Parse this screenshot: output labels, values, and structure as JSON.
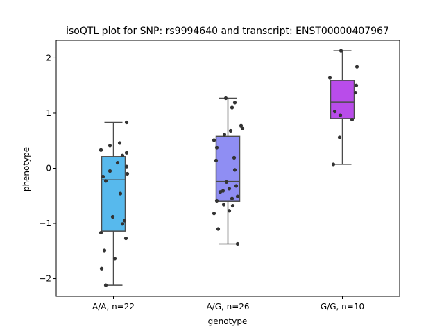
{
  "chart_data": {
    "type": "box",
    "title": "isoQTL plot for SNP: rs9994640 and transcript: ENST00000407967",
    "xlabel": "genotype",
    "ylabel": "phenotype",
    "ylim": [
      -2.32,
      2.32
    ],
    "yticks": [
      -2,
      -1,
      0,
      1,
      2
    ],
    "yticklabels": [
      "−2",
      "−1",
      "0",
      "1",
      "2"
    ],
    "grid": false,
    "categories": [
      "A/A, n=22",
      "A/G, n=26",
      "G/G, n=10"
    ],
    "colors": [
      "#57b9ed",
      "#8f8ef3",
      "#b94cea"
    ],
    "boxes": [
      {
        "category": "A/A, n=22",
        "whislo": -2.12,
        "q1": -1.14,
        "median": -0.21,
        "q3": 0.21,
        "whishi": 0.83
      },
      {
        "category": "A/G, n=26",
        "whislo": -1.37,
        "q1": -0.6,
        "median": -0.24,
        "q3": 0.58,
        "whishi": 1.27
      },
      {
        "category": "G/G, n=10",
        "whislo": 0.07,
        "q1": 0.9,
        "median": 1.2,
        "q3": 1.59,
        "whishi": 2.13
      }
    ],
    "points": [
      {
        "category": "A/A, n=22",
        "x_jitter": [
          0.19,
          -0.18,
          0.19,
          -0.05,
          0.09,
          -0.05,
          0.13,
          0.19,
          -0.15,
          0.1,
          -0.11,
          0.06,
          0.2,
          -0.01,
          0.13,
          -0.18,
          0.16,
          -0.13,
          0.18,
          0.02,
          -0.17,
          -0.11
        ],
        "y": [
          0.83,
          0.33,
          0.28,
          0.41,
          0.46,
          -0.05,
          0.23,
          0.03,
          -0.15,
          -0.46,
          -0.23,
          0.1,
          -0.1,
          -0.88,
          -1.01,
          -1.17,
          -0.95,
          -1.49,
          -1.27,
          -1.64,
          -1.82,
          -2.12
        ]
      },
      {
        "category": "A/G, n=26",
        "x_jitter": [
          -0.03,
          0.1,
          0.06,
          0.19,
          0.21,
          0.04,
          -0.05,
          -0.2,
          -0.16,
          0.09,
          -0.17,
          0.1,
          -0.02,
          0.12,
          0.02,
          -0.11,
          -0.07,
          0.06,
          -0.16,
          -0.06,
          0.07,
          -0.2,
          0.02,
          0.14,
          -0.14,
          0.14
        ],
        "y": [
          1.27,
          1.19,
          1.1,
          0.77,
          0.72,
          0.68,
          0.61,
          0.51,
          0.37,
          0.19,
          0.14,
          -0.03,
          -0.25,
          -0.32,
          -0.37,
          -0.43,
          -0.41,
          -0.55,
          -0.59,
          -0.66,
          -0.68,
          -0.82,
          -0.77,
          -0.51,
          -1.1,
          -1.37
        ]
      },
      {
        "category": "G/G, n=10",
        "x_jitter": [
          -0.02,
          0.21,
          -0.18,
          0.2,
          0.19,
          -0.11,
          -0.03,
          0.14,
          -0.04,
          -0.13
        ],
        "y": [
          2.13,
          1.84,
          1.64,
          1.5,
          1.37,
          1.03,
          0.96,
          0.88,
          0.56,
          0.07
        ]
      }
    ]
  }
}
